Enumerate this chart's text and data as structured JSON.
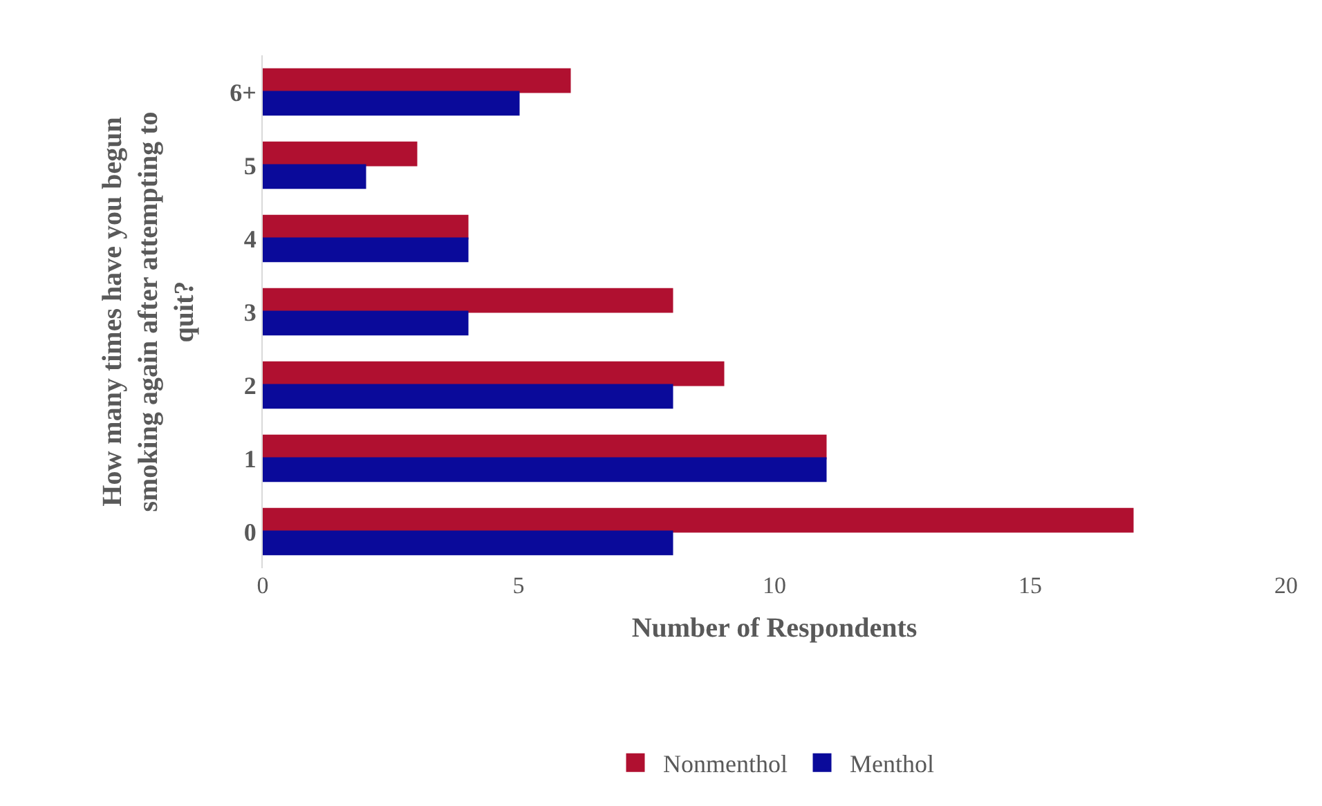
{
  "chart_data": {
    "type": "bar",
    "orientation": "horizontal",
    "xlabel": "Number of Respondents",
    "ylabel": "How many times have you begun smoking again after attempting to quit?",
    "categories": [
      "6+",
      "5",
      "4",
      "3",
      "2",
      "1",
      "0"
    ],
    "series": [
      {
        "name": "Nonmenthol",
        "color": "#b01030",
        "values": [
          6,
          3,
          4,
          8,
          9,
          11,
          17
        ]
      },
      {
        "name": "Menthol",
        "color": "#0a0a9a",
        "values": [
          5,
          2,
          4,
          4,
          8,
          11,
          8
        ]
      }
    ],
    "xlim": [
      0,
      20
    ],
    "xticks": [
      0,
      5,
      10,
      15,
      20
    ],
    "legend": "bottom"
  }
}
